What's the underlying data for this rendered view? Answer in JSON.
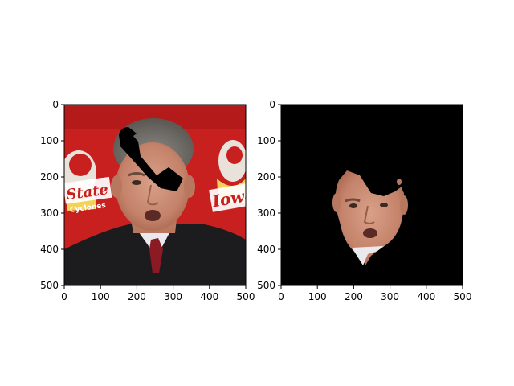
{
  "chart_data": [
    {
      "type": "image",
      "content": "photo of a man in a suit in front of a red banner, with a black hand-drawn stroke across the forehead",
      "xlim": [
        0,
        500
      ],
      "ylim": [
        500,
        0
      ],
      "xticks": [
        0,
        100,
        200,
        300,
        400,
        500
      ],
      "yticks": [
        0,
        100,
        200,
        300,
        400,
        500
      ],
      "xtick_labels": [
        "0",
        "100",
        "200",
        "300",
        "400",
        "500"
      ],
      "ytick_labels": [
        "0",
        "100",
        "200",
        "300",
        "400",
        "500"
      ],
      "banner_text": [
        "State",
        "Cyclones",
        "Iowa"
      ],
      "colors": {
        "background": "#c8201f",
        "suit": "#1c1c1e",
        "skin": "#c98a72",
        "stroke": "#000000"
      }
    },
    {
      "type": "image",
      "content": "same face segmented on black background, with a black mask over the forehead",
      "xlim": [
        0,
        500
      ],
      "ylim": [
        500,
        0
      ],
      "xticks": [
        0,
        100,
        200,
        300,
        400,
        500
      ],
      "yticks": [
        0,
        100,
        200,
        300,
        400,
        500
      ],
      "xtick_labels": [
        "0",
        "100",
        "200",
        "300",
        "400",
        "500"
      ],
      "ytick_labels": [
        "0",
        "100",
        "200",
        "300",
        "400",
        "500"
      ],
      "colors": {
        "background": "#000000",
        "skin": "#c98a72"
      }
    }
  ]
}
